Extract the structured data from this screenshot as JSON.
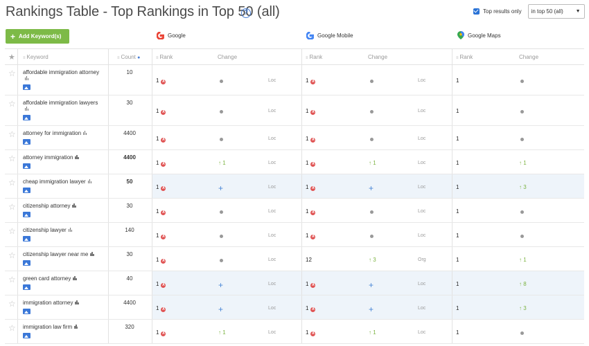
{
  "header": {
    "title": "Rankings Table - Top Rankings in Top 50 (all)",
    "help": "?",
    "top_results_label": "Top results only",
    "filter_value": "in top 50 (all)",
    "add_keyword_label": "Add Keyword(s)"
  },
  "engines": [
    {
      "name": "Google"
    },
    {
      "name": "Google Mobile"
    },
    {
      "name": "Google Maps"
    }
  ],
  "columns": {
    "keyword": "Keyword",
    "count": "Count",
    "rank": "Rank",
    "change": "Change"
  },
  "colors": {
    "accent": "#7dba47",
    "rank_badge": "#e05454",
    "up": "#7cb342",
    "plus": "#4a86d6",
    "highlight": "#eef4fa"
  },
  "rows": [
    {
      "keyword": "affordable immigration attorney",
      "wrap": true,
      "count": "10",
      "count_bold": false,
      "hl": false,
      "g_rank": "1",
      "g_change": "•",
      "g_loc": "Loc",
      "gm_rank": "1",
      "gm_change": "•",
      "gm_loc": "Loc",
      "maps_rank": "1",
      "maps_change": "•"
    },
    {
      "keyword": "affordable immigration lawyers",
      "wrap": true,
      "count": "30",
      "count_bold": false,
      "hl": false,
      "g_rank": "1",
      "g_change": "•",
      "g_loc": "Loc",
      "gm_rank": "1",
      "gm_change": "•",
      "gm_loc": "Loc",
      "maps_rank": "1",
      "maps_change": "•"
    },
    {
      "keyword": "attorney for immigration",
      "wrap": false,
      "count": "4400",
      "count_bold": false,
      "hl": false,
      "g_rank": "1",
      "g_change": "•",
      "g_loc": "Loc",
      "gm_rank": "1",
      "gm_change": "•",
      "gm_loc": "Loc",
      "maps_rank": "1",
      "maps_change": "•"
    },
    {
      "keyword": "attorney immigration",
      "wrap": false,
      "count": "4400",
      "count_bold": true,
      "hl": false,
      "g_rank": "1",
      "g_change": "↑ 1",
      "g_loc": "Loc",
      "gm_rank": "1",
      "gm_change": "↑ 1",
      "gm_loc": "Loc",
      "maps_rank": "1",
      "maps_change": "↑ 1"
    },
    {
      "keyword": "cheap immigration lawyer",
      "wrap": false,
      "count": "50",
      "count_bold": true,
      "hl": true,
      "g_rank": "1",
      "g_change": "+",
      "g_loc": "Loc",
      "gm_rank": "1",
      "gm_change": "+",
      "gm_loc": "Loc",
      "maps_rank": "1",
      "maps_change": "↑ 3"
    },
    {
      "keyword": "citizenship attorney",
      "wrap": false,
      "count": "30",
      "count_bold": false,
      "hl": false,
      "g_rank": "1",
      "g_change": "•",
      "g_loc": "Loc",
      "gm_rank": "1",
      "gm_change": "•",
      "gm_loc": "Loc",
      "maps_rank": "1",
      "maps_change": "•"
    },
    {
      "keyword": "citizenship lawyer",
      "wrap": false,
      "count": "140",
      "count_bold": false,
      "hl": false,
      "g_rank": "1",
      "g_change": "•",
      "g_loc": "Loc",
      "gm_rank": "1",
      "gm_change": "•",
      "gm_loc": "Loc",
      "maps_rank": "1",
      "maps_change": "•"
    },
    {
      "keyword": "citizenship lawyer near me",
      "wrap": false,
      "count": "30",
      "count_bold": false,
      "hl": false,
      "g_rank": "1",
      "g_change": "•",
      "g_loc": "Loc",
      "gm_rank": "12",
      "gm_badge": false,
      "gm_change": "↑ 3",
      "gm_loc": "Org",
      "maps_rank": "1",
      "maps_change": "↑ 1"
    },
    {
      "keyword": "green card attorney",
      "wrap": false,
      "count": "40",
      "count_bold": false,
      "hl": true,
      "g_rank": "1",
      "g_change": "+",
      "g_loc": "Loc",
      "gm_rank": "1",
      "gm_change": "+",
      "gm_loc": "Loc",
      "maps_rank": "1",
      "maps_change": "↑ 8"
    },
    {
      "keyword": "immigration attorney",
      "wrap": false,
      "count": "4400",
      "count_bold": false,
      "hl": true,
      "g_rank": "1",
      "g_change": "+",
      "g_loc": "Loc",
      "gm_rank": "1",
      "gm_change": "+",
      "gm_loc": "Loc",
      "maps_rank": "1",
      "maps_change": "↑ 3"
    },
    {
      "keyword": "immigration law firm",
      "wrap": false,
      "count": "320",
      "count_bold": false,
      "hl": false,
      "g_rank": "1",
      "g_change": "↑ 1",
      "g_loc": "Loc",
      "gm_rank": "1",
      "gm_change": "↑ 1",
      "gm_loc": "Loc",
      "maps_rank": "1",
      "maps_change": "•"
    }
  ]
}
